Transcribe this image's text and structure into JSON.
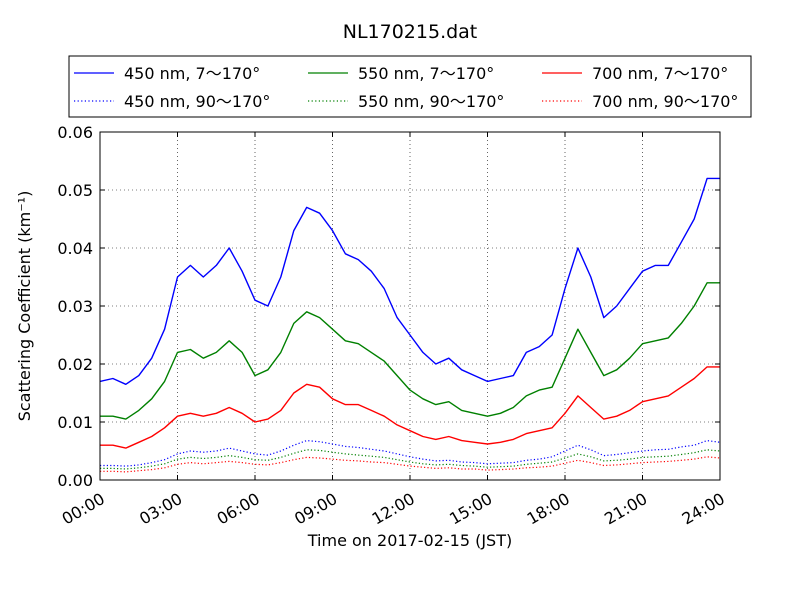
{
  "chart_data": {
    "type": "line",
    "title": "NL170215.dat",
    "xlabel": "Time on 2017-02-15 (JST)",
    "ylabel": "Scattering Coefficient (km⁻¹)",
    "xlim": [
      "00:00",
      "24:00"
    ],
    "ylim": [
      0,
      0.06
    ],
    "x_ticks": [
      "00:00",
      "03:00",
      "06:00",
      "09:00",
      "12:00",
      "15:00",
      "18:00",
      "21:00",
      "24:00"
    ],
    "y_ticks": [
      "0.00",
      "0.01",
      "0.02",
      "0.03",
      "0.04",
      "0.05",
      "0.06"
    ],
    "grid": true,
    "legend_position": "top",
    "x": [
      "00:00",
      "00:30",
      "01:00",
      "01:30",
      "02:00",
      "02:30",
      "03:00",
      "03:30",
      "04:00",
      "04:30",
      "05:00",
      "05:30",
      "06:00",
      "06:30",
      "07:00",
      "07:30",
      "08:00",
      "08:30",
      "09:00",
      "09:30",
      "10:00",
      "10:30",
      "11:00",
      "11:30",
      "12:00",
      "12:30",
      "13:00",
      "13:30",
      "14:00",
      "14:30",
      "15:00",
      "15:30",
      "16:00",
      "16:30",
      "17:00",
      "17:30",
      "18:00",
      "18:30",
      "19:00",
      "19:30",
      "20:00",
      "20:30",
      "21:00",
      "21:30",
      "22:00",
      "22:30",
      "23:00",
      "23:30",
      "24:00"
    ],
    "series": [
      {
        "name": "450 nm, 7～170°",
        "color": "#0000ff",
        "style": "solid",
        "values": [
          0.017,
          0.0175,
          0.0165,
          0.018,
          0.021,
          0.026,
          0.035,
          0.037,
          0.035,
          0.037,
          0.04,
          0.036,
          0.031,
          0.03,
          0.035,
          0.043,
          0.047,
          0.046,
          0.043,
          0.039,
          0.038,
          0.036,
          0.033,
          0.028,
          0.025,
          0.022,
          0.02,
          0.021,
          0.019,
          0.018,
          0.017,
          0.0175,
          0.018,
          0.022,
          0.023,
          0.025,
          0.033,
          0.04,
          0.035,
          0.028,
          0.03,
          0.033,
          0.036,
          0.037,
          0.037,
          0.041,
          0.045,
          0.052,
          0.052
        ]
      },
      {
        "name": "550 nm, 7～170°",
        "color": "#008000",
        "style": "solid",
        "values": [
          0.011,
          0.011,
          0.0105,
          0.012,
          0.014,
          0.017,
          0.022,
          0.0225,
          0.021,
          0.022,
          0.024,
          0.022,
          0.018,
          0.019,
          0.022,
          0.027,
          0.029,
          0.028,
          0.026,
          0.024,
          0.0235,
          0.022,
          0.0205,
          0.018,
          0.0155,
          0.014,
          0.013,
          0.0135,
          0.012,
          0.0115,
          0.011,
          0.0115,
          0.0125,
          0.0145,
          0.0155,
          0.016,
          0.021,
          0.026,
          0.022,
          0.018,
          0.019,
          0.021,
          0.0235,
          0.024,
          0.0245,
          0.027,
          0.03,
          0.034,
          0.034
        ]
      },
      {
        "name": "700 nm, 7～170°",
        "color": "#ff0000",
        "style": "solid",
        "values": [
          0.006,
          0.006,
          0.0055,
          0.0065,
          0.0075,
          0.009,
          0.011,
          0.0115,
          0.011,
          0.0115,
          0.0125,
          0.0115,
          0.01,
          0.0105,
          0.012,
          0.015,
          0.0165,
          0.016,
          0.014,
          0.013,
          0.013,
          0.012,
          0.011,
          0.0095,
          0.0085,
          0.0075,
          0.007,
          0.0075,
          0.0068,
          0.0065,
          0.0062,
          0.0065,
          0.007,
          0.008,
          0.0085,
          0.009,
          0.0115,
          0.0145,
          0.0125,
          0.0105,
          0.011,
          0.012,
          0.0135,
          0.014,
          0.0145,
          0.016,
          0.0175,
          0.0195,
          0.0195
        ]
      },
      {
        "name": "450 nm, 90～170°",
        "color": "#0000ff",
        "style": "dotted",
        "values": [
          0.0025,
          0.0025,
          0.0024,
          0.0026,
          0.003,
          0.0035,
          0.0045,
          0.005,
          0.0048,
          0.005,
          0.0055,
          0.005,
          0.0045,
          0.0043,
          0.005,
          0.006,
          0.0068,
          0.0066,
          0.0062,
          0.0058,
          0.0056,
          0.0053,
          0.005,
          0.0045,
          0.004,
          0.0036,
          0.0033,
          0.0034,
          0.0031,
          0.003,
          0.0028,
          0.0029,
          0.003,
          0.0034,
          0.0036,
          0.004,
          0.005,
          0.006,
          0.0052,
          0.0042,
          0.0044,
          0.0047,
          0.005,
          0.0052,
          0.0053,
          0.0057,
          0.006,
          0.0068,
          0.0065
        ]
      },
      {
        "name": "550 nm, 90～170°",
        "color": "#008000",
        "style": "dotted",
        "values": [
          0.002,
          0.002,
          0.0019,
          0.0021,
          0.0024,
          0.0028,
          0.0036,
          0.0039,
          0.0037,
          0.0039,
          0.0042,
          0.0039,
          0.0035,
          0.0034,
          0.0039,
          0.0046,
          0.0052,
          0.0051,
          0.0048,
          0.0045,
          0.0043,
          0.0041,
          0.0039,
          0.0035,
          0.0031,
          0.0028,
          0.0026,
          0.0027,
          0.0025,
          0.0024,
          0.0022,
          0.0023,
          0.0024,
          0.0027,
          0.0029,
          0.0031,
          0.0038,
          0.0045,
          0.004,
          0.0033,
          0.0034,
          0.0036,
          0.0039,
          0.004,
          0.0041,
          0.0044,
          0.0047,
          0.0052,
          0.005
        ]
      },
      {
        "name": "700 nm, 90～170°",
        "color": "#ff0000",
        "style": "dotted",
        "values": [
          0.0015,
          0.0015,
          0.0014,
          0.0016,
          0.0018,
          0.0021,
          0.0027,
          0.003,
          0.0028,
          0.003,
          0.0032,
          0.003,
          0.0027,
          0.0026,
          0.003,
          0.0035,
          0.0039,
          0.0038,
          0.0036,
          0.0034,
          0.0033,
          0.0031,
          0.003,
          0.0027,
          0.0024,
          0.0022,
          0.002,
          0.0021,
          0.0019,
          0.0019,
          0.0017,
          0.0018,
          0.0019,
          0.0021,
          0.0022,
          0.0024,
          0.0029,
          0.0034,
          0.003,
          0.0025,
          0.0026,
          0.0028,
          0.003,
          0.0031,
          0.0032,
          0.0034,
          0.0036,
          0.004,
          0.0038
        ]
      }
    ],
    "legend_order": [
      0,
      1,
      2,
      3,
      4,
      5
    ]
  }
}
